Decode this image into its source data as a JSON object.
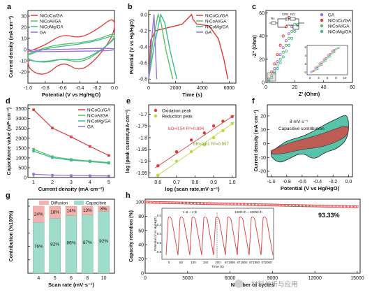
{
  "colors": {
    "red": "#e0393b",
    "green": "#55c35a",
    "teal": "#3cb89a",
    "violet": "#9d6fd8",
    "lime": "#b9d839",
    "diffusion": "#f3b2ad",
    "capacitive": "#9fdcca"
  },
  "watermark": "材料分析与应用",
  "chart_data": [
    {
      "panel": "a",
      "type": "line",
      "xlabel": "Potential (V vs Hg/HgO)",
      "ylabel": "Current density (mA·cm⁻²)",
      "xlim": [
        -1.0,
        0.0
      ],
      "ylim": [
        -30,
        35
      ],
      "xticks": [
        "-1.0",
        "-0.8",
        "-0.6",
        "-0.4",
        "-0.2",
        "0.0"
      ],
      "yticks": [
        "-20",
        "-10",
        "0",
        "10",
        "20",
        "30"
      ],
      "legend": [
        "NiCoCu/GA",
        "NiCoAl/GA",
        "NiCoMg/GA",
        "GA"
      ],
      "series": [
        {
          "name": "NiCoCu/GA",
          "x": [
            -1.0,
            -0.8,
            -0.6,
            -0.4,
            -0.2,
            0.0,
            0.0,
            -0.2,
            -0.4,
            -0.6,
            -0.8,
            -1.0,
            -1.0
          ],
          "y": [
            -2,
            4,
            14,
            10,
            18,
            30,
            14,
            -8,
            -20,
            -10,
            -24,
            -18,
            -2
          ]
        },
        {
          "name": "NiCoAl/GA",
          "x": [
            -1.0,
            -0.8,
            -0.6,
            -0.4,
            -0.2,
            0.0,
            0.0,
            -0.2,
            -0.4,
            -0.6,
            -0.8,
            -1.0,
            -1.0
          ],
          "y": [
            -4,
            2,
            5,
            6,
            9,
            15,
            10,
            -4,
            -12,
            -8,
            -11,
            -10,
            -4
          ]
        },
        {
          "name": "NiCoMg/GA",
          "x": [
            -1.0,
            -0.8,
            -0.6,
            -0.4,
            -0.2,
            0.0,
            0.0,
            -0.2,
            -0.4,
            -0.6,
            -0.8,
            -1.0,
            -1.0
          ],
          "y": [
            -5,
            1,
            3,
            5,
            8,
            13,
            9,
            -3,
            -10,
            -8,
            -12,
            -9,
            -5
          ]
        },
        {
          "name": "GA",
          "x": [
            -1.0,
            -0.5,
            0.0,
            0.0,
            -0.5,
            -1.0,
            -1.0
          ],
          "y": [
            -0.5,
            0.5,
            1.5,
            -1,
            -1.5,
            -2,
            -0.5
          ]
        }
      ]
    },
    {
      "panel": "b",
      "type": "line",
      "xlabel": "Time (s)",
      "ylabel": "Potential (V vs Hg/HgO)",
      "xlim": [
        0,
        6500
      ],
      "ylim": [
        -0.85,
        0.05
      ],
      "xticks": [
        "0",
        "2000",
        "4000",
        "6000"
      ],
      "yticks": [
        "0.0",
        "-0.2",
        "-0.4",
        "-0.6",
        "-0.8"
      ],
      "legend": [
        "NiCoCu/GA",
        "NiCoAl/GA",
        "NiCoMg/GA",
        "GA"
      ],
      "series": [
        {
          "name": "NiCoCu/GA",
          "x": [
            0,
            150,
            500,
            1500,
            2500,
            3200,
            3300,
            3600,
            4500,
            5200,
            5600,
            5900
          ],
          "y": [
            -0.8,
            -0.32,
            -0.2,
            -0.16,
            -0.12,
            0.0,
            -0.06,
            -0.12,
            -0.14,
            -0.3,
            -0.55,
            -0.8
          ]
        },
        {
          "name": "NiCoAl/GA",
          "x": [
            0,
            300,
            700,
            900,
            1300,
            1800
          ],
          "y": [
            -0.8,
            -0.35,
            0.0,
            -0.08,
            -0.45,
            -0.8
          ]
        },
        {
          "name": "NiCoMg/GA",
          "x": [
            0,
            400,
            900,
            1200,
            1600,
            2100
          ],
          "y": [
            -0.8,
            -0.4,
            0.0,
            -0.1,
            -0.45,
            -0.8
          ]
        },
        {
          "name": "GA",
          "x": [
            0,
            200,
            400,
            600
          ],
          "y": [
            -0.8,
            -0.35,
            0.0,
            -0.8
          ]
        }
      ]
    },
    {
      "panel": "c",
      "type": "scatter",
      "xlabel": "Z' (Ohm)",
      "ylabel": "-Z'' (Ohm)",
      "xlim": [
        0,
        60
      ],
      "ylim": [
        0,
        62
      ],
      "xticks": [
        "0",
        "20",
        "40",
        "60"
      ],
      "yticks": [
        "0",
        "20",
        "40",
        "60"
      ],
      "legend": [
        "GA",
        "NiCoCu/GA",
        "NiCoAl/GA",
        "NiCoMg/GA"
      ],
      "inset": {
        "xticks": [
          "2",
          "4",
          "6",
          "8",
          "10"
        ],
        "yticks": [
          "0",
          "2",
          "4",
          "6"
        ]
      },
      "circuit_labels": [
        "Rs",
        "CPE",
        "Rct",
        "W"
      ],
      "series": [
        {
          "name": "GA",
          "x": [
            2,
            4,
            6,
            8,
            10,
            12,
            14,
            16,
            18
          ],
          "y": [
            2,
            6,
            12,
            18,
            24,
            30,
            36,
            42,
            48
          ]
        },
        {
          "name": "NiCoCu/GA",
          "x": [
            2,
            4,
            6,
            8,
            10,
            12,
            14,
            16
          ],
          "y": [
            3,
            9,
            16,
            24,
            32,
            40,
            48,
            56
          ]
        },
        {
          "name": "NiCoAl/GA",
          "x": [
            2,
            4,
            6,
            8,
            10,
            12,
            14,
            16,
            18,
            20
          ],
          "y": [
            2,
            6,
            10,
            15,
            20,
            26,
            32,
            38,
            44,
            50
          ]
        },
        {
          "name": "NiCoMg/GA",
          "x": [
            2,
            4,
            6,
            8,
            10,
            12,
            14,
            16,
            18,
            20,
            22
          ],
          "y": [
            1,
            4,
            8,
            12,
            17,
            22,
            27,
            32,
            38,
            44,
            50
          ]
        }
      ]
    },
    {
      "panel": "d",
      "type": "line",
      "xlabel": "Current density (mA·cm⁻²)",
      "ylabel": "Capacitance value (mF·cm⁻²)",
      "xlim": [
        0.7,
        5.3
      ],
      "ylim": [
        0,
        3700
      ],
      "xticks": [
        "1",
        "2",
        "3",
        "4",
        "5"
      ],
      "yticks": [
        "0",
        "500",
        "1000",
        "1500",
        "2000",
        "2500",
        "3000",
        "3500"
      ],
      "legend": [
        "NiCoCu/GA",
        "NiCoAl/GA",
        "NiCoMg/GA",
        "GA"
      ],
      "categories": [
        1,
        2,
        3,
        4,
        5
      ],
      "series": [
        {
          "name": "NiCoCu/GA",
          "values": [
            3450,
            2520,
            2070,
            1580,
            1120
          ]
        },
        {
          "name": "NiCoAl/GA",
          "values": [
            1440,
            1060,
            920,
            840,
            760
          ]
        },
        {
          "name": "NiCoMg/GA",
          "values": [
            1340,
            1010,
            880,
            810,
            730
          ]
        },
        {
          "name": "GA",
          "values": [
            170,
            120,
            100,
            90,
            80
          ]
        }
      ]
    },
    {
      "panel": "e",
      "type": "scatter",
      "xlabel": "log (scan rate,mV·s⁻¹)",
      "ylabel": "log (peak current,mA·cm⁻²)",
      "xlim": [
        0.55,
        1.02
      ],
      "ylim": [
        -1.97,
        -1.66
      ],
      "xticks": [
        "0.6",
        "0.7",
        "0.8",
        "0.9",
        "1.0"
      ],
      "yticks": [
        "-1.7",
        "-1.75",
        "-1.8",
        "-1.85",
        "-1.9",
        "-1.95"
      ],
      "legend": [
        "Oxidation peak",
        "Reduction peak"
      ],
      "annotations": [
        "bO=0.54 R²=0.994",
        "bR=0.61 R²=0.997"
      ],
      "series": [
        {
          "name": "Oxidation peak",
          "x": [
            0.6,
            0.7,
            0.78,
            0.85,
            0.9,
            0.95,
            1.0
          ],
          "y": [
            -1.92,
            -1.86,
            -1.81,
            -1.78,
            -1.75,
            -1.73,
            -1.71
          ]
        },
        {
          "name": "Reduction peak",
          "x": [
            0.6,
            0.7,
            0.78,
            0.85,
            0.9,
            0.95,
            1.0
          ],
          "y": [
            -1.96,
            -1.9,
            -1.86,
            -1.83,
            -1.8,
            -1.77,
            -1.74
          ]
        }
      ]
    },
    {
      "panel": "f",
      "type": "area",
      "xlabel": "Potential (V vs Hg/HgO)",
      "ylabel": "Current density (mA·cm⁻²)",
      "xlim": [
        -1.05,
        0.05
      ],
      "ylim": [
        -24,
        28
      ],
      "xticks": [
        "-1.0",
        "-0.8",
        "-0.6",
        "-0.4",
        "-0.2",
        "0.0"
      ],
      "yticks": [
        "-20",
        "-10",
        "0",
        "10",
        "20"
      ],
      "annotations": [
        "8 mV·s⁻¹",
        "Capacitive contribution"
      ],
      "series": [
        {
          "name": "CV",
          "x": [
            -1.0,
            -0.9,
            -0.8,
            -0.6,
            -0.45,
            -0.3,
            -0.15,
            0.0,
            0.0,
            -0.15,
            -0.3,
            -0.45,
            -0.6,
            -0.8,
            -0.9,
            -1.0,
            -1.0
          ],
          "y": [
            -6,
            -2,
            2,
            5,
            9,
            14,
            18,
            22,
            4,
            -4,
            -6,
            -12,
            -6,
            -12,
            -14,
            -10,
            -6
          ]
        },
        {
          "name": "Capacitive contribution",
          "x": [
            -1.0,
            -0.8,
            -0.6,
            -0.4,
            -0.2,
            0.0,
            0.0,
            -0.2,
            -0.4,
            -0.6,
            -0.8,
            -1.0,
            -1.0
          ],
          "y": [
            -5,
            0,
            3,
            6,
            10,
            14,
            6,
            0,
            -3,
            -4,
            -7,
            -8,
            -5
          ]
        }
      ]
    },
    {
      "panel": "g",
      "type": "bar",
      "xlabel": "Scan rate (mV·s⁻¹)",
      "ylabel": "Contribution (%100%)",
      "ylim": [
        0,
        100
      ],
      "categories": [
        "4",
        "5",
        "6",
        "8",
        "10"
      ],
      "legend": [
        "Diffusion",
        "Capacitive"
      ],
      "series": [
        {
          "name": "Capacitive",
          "values": [
            76,
            82,
            86,
            87,
            92
          ],
          "labels": [
            "76%",
            "82%",
            "86%",
            "87%",
            "92%"
          ]
        },
        {
          "name": "Diffusion",
          "values": [
            24,
            18,
            14,
            13,
            8
          ],
          "labels": [
            "24%",
            "18%",
            "14%",
            "13%",
            "8%"
          ]
        }
      ]
    },
    {
      "panel": "h",
      "type": "scatter",
      "xlabel": "Number of cycles",
      "ylabel": "Capacity retention (%)",
      "xlim": [
        0,
        15200
      ],
      "ylim": [
        0,
        104
      ],
      "xticks": [
        "0",
        "3000",
        "6000",
        "9000",
        "12000",
        "15000"
      ],
      "yticks": [
        "0",
        "20",
        "40",
        "60",
        "80",
        "100"
      ],
      "annotations": [
        "93.33%",
        "1 st ~ 4 th",
        "149th th ~ 15000 th"
      ],
      "series": [
        {
          "name": "Retention",
          "x": [
            0,
            500,
            1000,
            2000,
            3000,
            4000,
            5000,
            6000,
            7000,
            8000,
            9000,
            10000,
            11000,
            12000,
            13000,
            14000,
            15000
          ],
          "y": [
            100,
            99.5,
            99.3,
            98.9,
            98.5,
            98.0,
            97.6,
            97.2,
            96.7,
            96.2,
            95.8,
            95.3,
            94.9,
            94.5,
            94.1,
            93.7,
            93.33
          ]
        }
      ],
      "inset": {
        "ylabel": "Potential (V vs Hg/HgO)",
        "xlabel": "Time (s)",
        "xticks": [
          "0",
          "50",
          "100",
          "150",
          "200",
          "671850",
          "671900",
          "671950",
          "672000"
        ],
        "yticks": [
          "0.0",
          "-0.2",
          "-0.4",
          "-0.6",
          "-0.8"
        ]
      }
    }
  ]
}
